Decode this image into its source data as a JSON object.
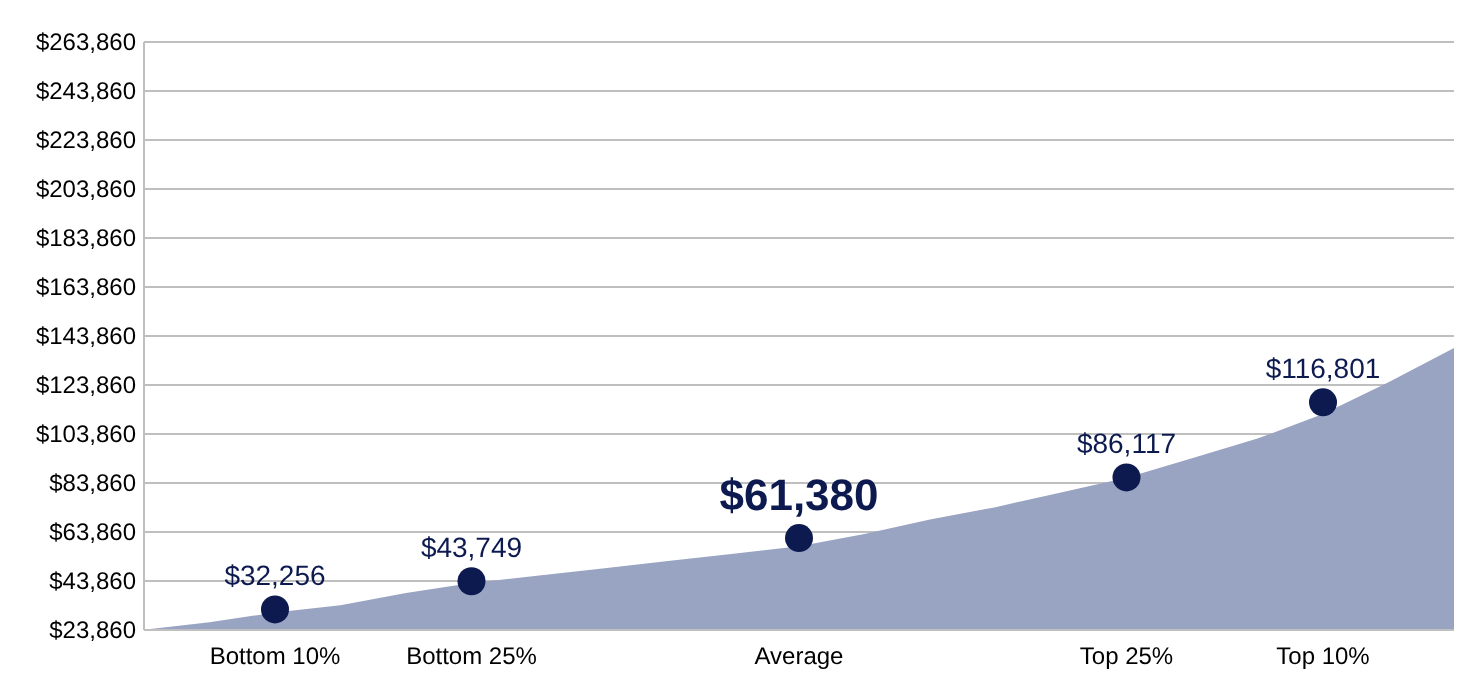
{
  "chart_data": {
    "type": "area",
    "categories": [
      null,
      null,
      "Bottom 10%",
      null,
      null,
      "Bottom 25%",
      null,
      null,
      null,
      null,
      "Average",
      null,
      null,
      null,
      null,
      "Top 25%",
      null,
      null,
      "Top 10%",
      null,
      null
    ],
    "ylim": [
      23860,
      263860
    ],
    "yticks": [
      {
        "value": 23860,
        "label": "$23,860"
      },
      {
        "value": 43860,
        "label": "$43,860"
      },
      {
        "value": 63860,
        "label": "$63,860"
      },
      {
        "value": 83860,
        "label": "$83,860"
      },
      {
        "value": 103860,
        "label": "$103,860"
      },
      {
        "value": 123860,
        "label": "$123,860"
      },
      {
        "value": 143860,
        "label": "$143,860"
      },
      {
        "value": 163860,
        "label": "$163,860"
      },
      {
        "value": 183860,
        "label": "$183,860"
      },
      {
        "value": 203860,
        "label": "$203,860"
      },
      {
        "value": 223860,
        "label": "$223,860"
      },
      {
        "value": 243860,
        "label": "$243,860"
      },
      {
        "value": 263860,
        "label": "$263,860"
      }
    ],
    "grid": "y",
    "series": [
      {
        "color": "#99a3c2",
        "values": [
          24000,
          27000,
          31000,
          34000,
          39000,
          43000,
          46000,
          49000,
          52000,
          55000,
          58000,
          63000,
          69000,
          74000,
          80000,
          86000,
          94000,
          102000,
          112000,
          125000,
          139000
        ]
      },
      {
        "type": "scatter",
        "color": "#0d1a4f",
        "marker": "circle",
        "values": [
          null,
          null,
          32256,
          null,
          null,
          43749,
          null,
          null,
          null,
          null,
          61380,
          null,
          null,
          null,
          null,
          86117,
          null,
          null,
          116801,
          null,
          null
        ],
        "value_labels": [
          null,
          null,
          "$32,256",
          null,
          null,
          "$43,749",
          null,
          null,
          null,
          null,
          "$61,380",
          null,
          null,
          null,
          null,
          "$86,117",
          null,
          null,
          "$116,801",
          null,
          null
        ]
      }
    ]
  }
}
